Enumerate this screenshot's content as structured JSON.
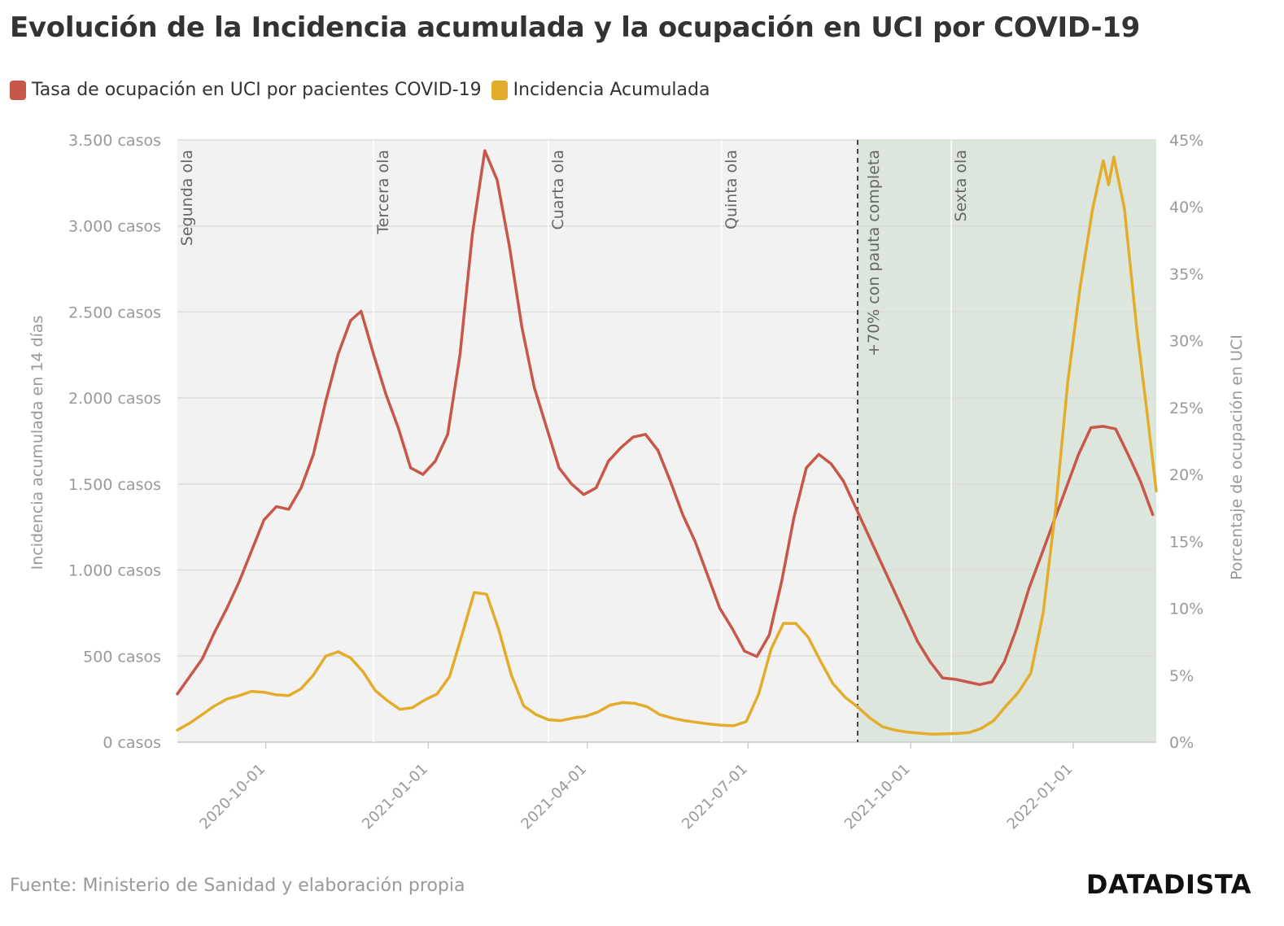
{
  "header": {
    "title": "Evolución de la Incidencia acumulada y la ocupación en UCI por COVID-19"
  },
  "footer": {
    "source": "Fuente: Ministerio de Sanidad y elaboración propia",
    "brand": "DATADISTA"
  },
  "colors": {
    "uci": "#c8574a",
    "ia": "#e3ac2a",
    "plot_background": "#f2f2f2",
    "shaded_region": "#dde6dc",
    "grid": "#dcdcdc",
    "axis_text": "#999999"
  },
  "chart_data": {
    "type": "line",
    "title": "Evolución de la Incidencia acumulada y la ocupación en UCI por COVID-19",
    "x_type": "date",
    "xlim": [
      "2020-08-12",
      "2022-02-17"
    ],
    "x_ticks": [
      "2020-10-01",
      "2021-01-01",
      "2021-04-01",
      "2021-07-01",
      "2021-10-01",
      "2022-01-01"
    ],
    "y_left": {
      "label": "Incidencia acumulada en 14 días",
      "lim": [
        0,
        3500
      ],
      "ticks": [
        0,
        500,
        1000,
        1500,
        2000,
        2500,
        3000,
        3500
      ],
      "tick_labels": [
        "0 casos",
        "500 casos",
        "1.000 casos",
        "1.500 casos",
        "2.000 casos",
        "2.500 casos",
        "3.000 casos",
        "3.500 casos"
      ]
    },
    "y_right": {
      "label": "Porcentaje de ocupación en UCI",
      "lim": [
        0,
        45
      ],
      "ticks": [
        0,
        5,
        10,
        15,
        20,
        25,
        30,
        35,
        40,
        45
      ],
      "tick_labels": [
        "0%",
        "5%",
        "10%",
        "15%",
        "20%",
        "25%",
        "30%",
        "35%",
        "40%",
        "45%"
      ]
    },
    "grid": true,
    "legend": "top-left",
    "series": [
      {
        "name": "Tasa de ocupación en UCI por pacientes COVID-19",
        "axis": "right",
        "color": "#c8574a",
        "points": [
          [
            "2020-08-12",
            3.6
          ],
          [
            "2020-08-19",
            4.9
          ],
          [
            "2020-08-26",
            6.2
          ],
          [
            "2020-09-02",
            8.2
          ],
          [
            "2020-09-09",
            10.0
          ],
          [
            "2020-09-16",
            12.0
          ],
          [
            "2020-09-23",
            14.3
          ],
          [
            "2020-09-30",
            16.6
          ],
          [
            "2020-10-07",
            17.6
          ],
          [
            "2020-10-14",
            17.4
          ],
          [
            "2020-10-21",
            19.0
          ],
          [
            "2020-10-28",
            21.5
          ],
          [
            "2020-11-04",
            25.5
          ],
          [
            "2020-11-11",
            29.0
          ],
          [
            "2020-11-18",
            31.5
          ],
          [
            "2020-11-24",
            32.2
          ],
          [
            "2020-12-01",
            29.0
          ],
          [
            "2020-12-08",
            26.0
          ],
          [
            "2020-12-15",
            23.5
          ],
          [
            "2020-12-22",
            20.5
          ],
          [
            "2020-12-29",
            20.0
          ],
          [
            "2021-01-05",
            21.0
          ],
          [
            "2021-01-12",
            23.0
          ],
          [
            "2021-01-19",
            29.0
          ],
          [
            "2021-01-26",
            38.0
          ],
          [
            "2021-02-02",
            44.2
          ],
          [
            "2021-02-09",
            42.0
          ],
          [
            "2021-02-16",
            37.0
          ],
          [
            "2021-02-23",
            31.0
          ],
          [
            "2021-03-02",
            26.5
          ],
          [
            "2021-03-09",
            23.5
          ],
          [
            "2021-03-16",
            20.5
          ],
          [
            "2021-03-23",
            19.3
          ],
          [
            "2021-03-30",
            18.5
          ],
          [
            "2021-04-06",
            19.0
          ],
          [
            "2021-04-13",
            21.0
          ],
          [
            "2021-04-20",
            22.0
          ],
          [
            "2021-04-27",
            22.8
          ],
          [
            "2021-05-04",
            23.0
          ],
          [
            "2021-05-11",
            21.8
          ],
          [
            "2021-05-18",
            19.5
          ],
          [
            "2021-05-25",
            17.0
          ],
          [
            "2021-06-01",
            15.0
          ],
          [
            "2021-06-08",
            12.5
          ],
          [
            "2021-06-15",
            10.0
          ],
          [
            "2021-06-22",
            8.5
          ],
          [
            "2021-06-29",
            6.8
          ],
          [
            "2021-07-06",
            6.4
          ],
          [
            "2021-07-13",
            8.0
          ],
          [
            "2021-07-20",
            12.0
          ],
          [
            "2021-07-27",
            16.8
          ],
          [
            "2021-08-03",
            20.5
          ],
          [
            "2021-08-10",
            21.5
          ],
          [
            "2021-08-17",
            20.8
          ],
          [
            "2021-08-24",
            19.5
          ],
          [
            "2021-08-31",
            17.5
          ],
          [
            "2021-09-07",
            15.5
          ],
          [
            "2021-09-14",
            13.5
          ],
          [
            "2021-09-21",
            11.5
          ],
          [
            "2021-09-28",
            9.5
          ],
          [
            "2021-10-05",
            7.5
          ],
          [
            "2021-10-12",
            6.0
          ],
          [
            "2021-10-19",
            4.8
          ],
          [
            "2021-10-26",
            4.7
          ],
          [
            "2021-11-02",
            4.5
          ],
          [
            "2021-11-09",
            4.3
          ],
          [
            "2021-11-16",
            4.5
          ],
          [
            "2021-11-23",
            6.0
          ],
          [
            "2021-11-30",
            8.5
          ],
          [
            "2021-12-07",
            11.5
          ],
          [
            "2021-12-14",
            14.0
          ],
          [
            "2021-12-21",
            16.5
          ],
          [
            "2021-12-28",
            19.0
          ],
          [
            "2022-01-04",
            21.5
          ],
          [
            "2022-01-11",
            23.5
          ],
          [
            "2022-01-18",
            23.6
          ],
          [
            "2022-01-25",
            23.4
          ],
          [
            "2022-02-01",
            21.5
          ],
          [
            "2022-02-08",
            19.5
          ],
          [
            "2022-02-15",
            17.0
          ]
        ]
      },
      {
        "name": "Incidencia Acumulada",
        "axis": "left",
        "color": "#e3ac2a",
        "points": [
          [
            "2020-08-12",
            70
          ],
          [
            "2020-08-19",
            110
          ],
          [
            "2020-08-26",
            160
          ],
          [
            "2020-09-02",
            210
          ],
          [
            "2020-09-09",
            250
          ],
          [
            "2020-09-16",
            270
          ],
          [
            "2020-09-23",
            295
          ],
          [
            "2020-09-30",
            290
          ],
          [
            "2020-10-07",
            275
          ],
          [
            "2020-10-14",
            270
          ],
          [
            "2020-10-21",
            310
          ],
          [
            "2020-10-28",
            390
          ],
          [
            "2020-11-04",
            500
          ],
          [
            "2020-11-11",
            525
          ],
          [
            "2020-11-18",
            490
          ],
          [
            "2020-11-25",
            410
          ],
          [
            "2020-12-02",
            300
          ],
          [
            "2020-12-09",
            240
          ],
          [
            "2020-12-16",
            190
          ],
          [
            "2020-12-23",
            200
          ],
          [
            "2020-12-30",
            245
          ],
          [
            "2021-01-06",
            280
          ],
          [
            "2021-01-13",
            380
          ],
          [
            "2021-01-20",
            620
          ],
          [
            "2021-01-27",
            870
          ],
          [
            "2021-02-03",
            860
          ],
          [
            "2021-02-10",
            650
          ],
          [
            "2021-02-17",
            390
          ],
          [
            "2021-02-24",
            210
          ],
          [
            "2021-03-03",
            160
          ],
          [
            "2021-03-10",
            130
          ],
          [
            "2021-03-17",
            125
          ],
          [
            "2021-03-24",
            140
          ],
          [
            "2021-03-31",
            150
          ],
          [
            "2021-04-07",
            175
          ],
          [
            "2021-04-14",
            215
          ],
          [
            "2021-04-21",
            230
          ],
          [
            "2021-04-28",
            225
          ],
          [
            "2021-05-05",
            205
          ],
          [
            "2021-05-12",
            160
          ],
          [
            "2021-05-19",
            140
          ],
          [
            "2021-05-26",
            125
          ],
          [
            "2021-06-02",
            115
          ],
          [
            "2021-06-09",
            105
          ],
          [
            "2021-06-16",
            98
          ],
          [
            "2021-06-23",
            95
          ],
          [
            "2021-06-30",
            120
          ],
          [
            "2021-07-07",
            280
          ],
          [
            "2021-07-14",
            540
          ],
          [
            "2021-07-21",
            690
          ],
          [
            "2021-07-28",
            690
          ],
          [
            "2021-08-04",
            610
          ],
          [
            "2021-08-11",
            470
          ],
          [
            "2021-08-18",
            340
          ],
          [
            "2021-08-25",
            260
          ],
          [
            "2021-09-01",
            205
          ],
          [
            "2021-09-08",
            140
          ],
          [
            "2021-09-15",
            90
          ],
          [
            "2021-09-22",
            70
          ],
          [
            "2021-09-29",
            58
          ],
          [
            "2021-10-06",
            52
          ],
          [
            "2021-10-13",
            46
          ],
          [
            "2021-10-20",
            48
          ],
          [
            "2021-10-27",
            50
          ],
          [
            "2021-11-03",
            55
          ],
          [
            "2021-11-10",
            80
          ],
          [
            "2021-11-17",
            125
          ],
          [
            "2021-11-24",
            210
          ],
          [
            "2021-12-01",
            290
          ],
          [
            "2021-12-08",
            400
          ],
          [
            "2021-12-15",
            750
          ],
          [
            "2021-12-22",
            1350
          ],
          [
            "2021-12-29",
            2100
          ],
          [
            "2022-01-05",
            2650
          ],
          [
            "2022-01-12",
            3100
          ],
          [
            "2022-01-18",
            3380
          ],
          [
            "2022-01-21",
            3240
          ],
          [
            "2022-01-24",
            3400
          ],
          [
            "2022-01-30",
            3100
          ],
          [
            "2022-02-06",
            2400
          ],
          [
            "2022-02-12",
            1900
          ],
          [
            "2022-02-17",
            1460
          ]
        ]
      }
    ],
    "annotations": [
      {
        "date": "2020-08-12",
        "label": "Segunda ola"
      },
      {
        "date": "2020-12-01",
        "label": "Tercera ola"
      },
      {
        "date": "2021-03-10",
        "label": "Cuarta ola"
      },
      {
        "date": "2021-06-16",
        "label": "Quinta ola"
      },
      {
        "date": "2021-10-24",
        "label": "Sexta ola"
      }
    ],
    "threshold_event": {
      "date": "2021-09-01",
      "label": "+70% con pauta completa"
    },
    "shaded_range": [
      "2021-09-01",
      "2022-02-17"
    ]
  }
}
